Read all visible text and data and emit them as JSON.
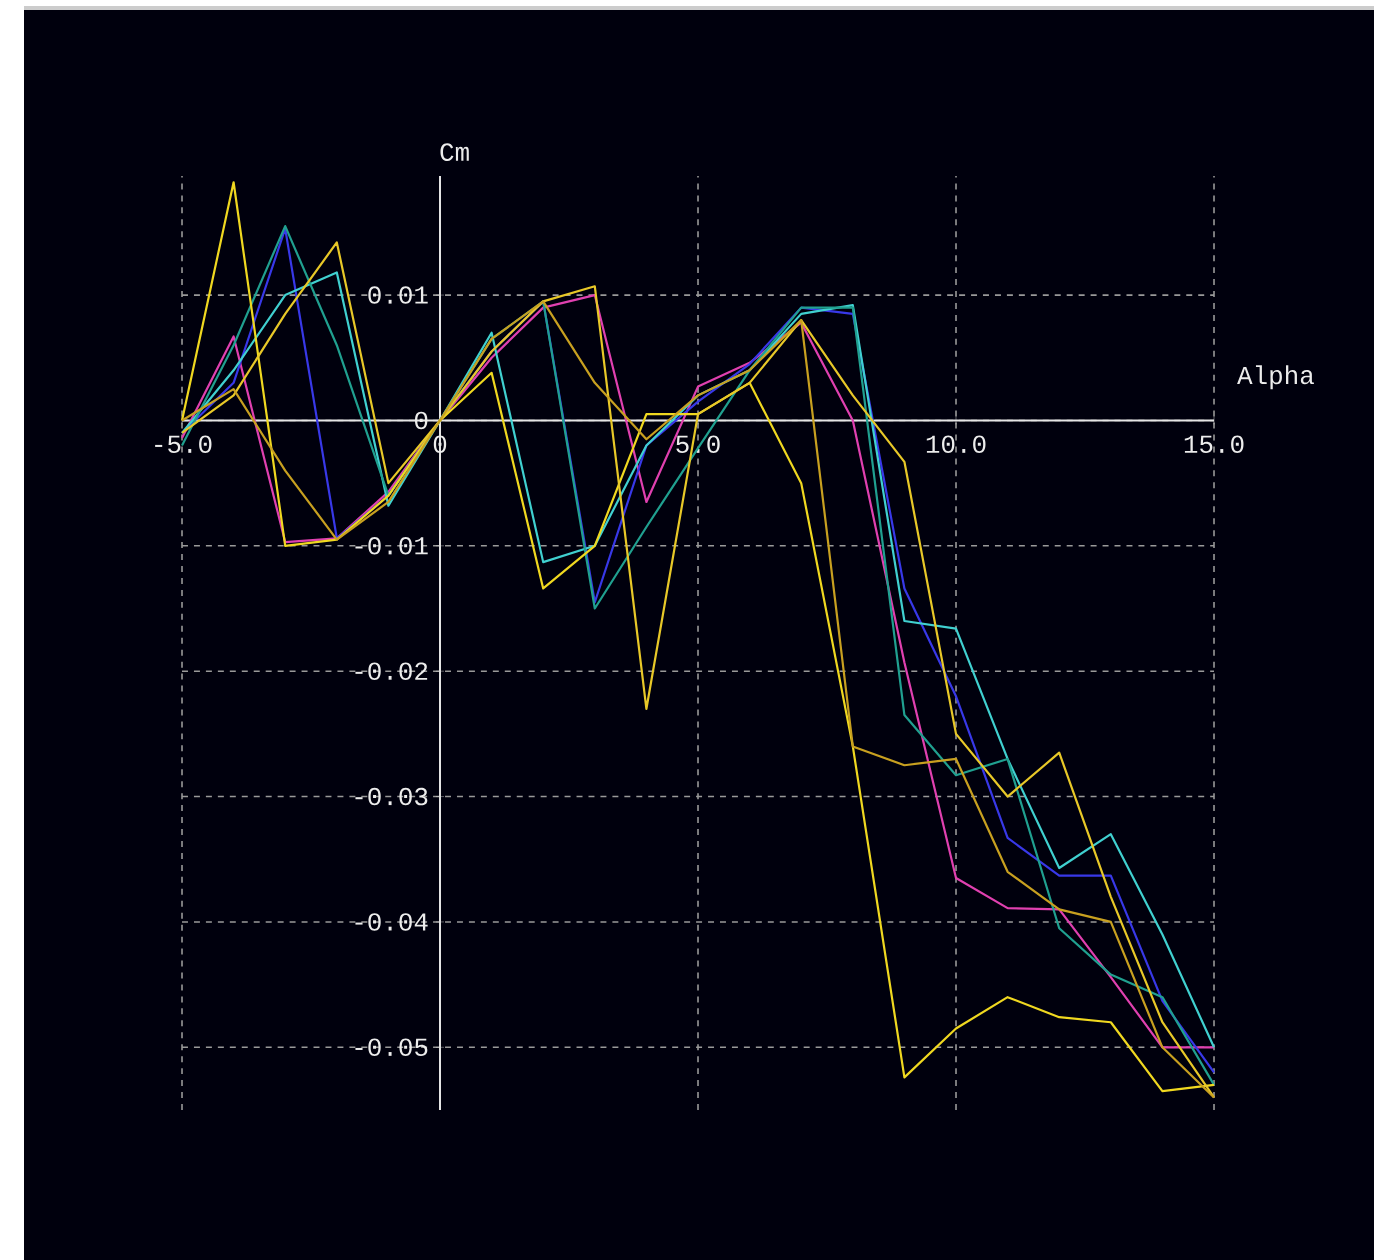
{
  "chart_data": {
    "type": "line",
    "xlabel": "Alpha",
    "ylabel": "Cm",
    "x": [
      -5,
      -4,
      -3,
      -2,
      -1,
      0,
      1,
      2,
      3,
      4,
      5,
      6,
      7,
      8,
      9,
      10,
      11,
      12,
      13,
      14,
      15
    ],
    "series": [
      {
        "color": "#e040b0",
        "values": [
          -0.0014,
          0.0067,
          -0.0097,
          -0.0094,
          -0.0057,
          0,
          0.005,
          0.009,
          0.01,
          -0.0065,
          0.0027,
          0.0046,
          0.0078,
          0,
          -0.0193,
          -0.0365,
          -0.0389,
          -0.039,
          -0.0444,
          -0.05,
          -0.05
        ]
      },
      {
        "color": "#3838e8",
        "values": [
          -0.001,
          0.003,
          0.0153,
          -0.0094,
          -0.006,
          0,
          0.0055,
          0.0095,
          -0.0145,
          -0.002,
          0.0015,
          0.0045,
          0.009,
          0.0085,
          -0.0134,
          -0.022,
          -0.0333,
          -0.0363,
          -0.0363,
          -0.0463,
          -0.052
        ]
      },
      {
        "color": "#40d0d0",
        "values": [
          -0.001,
          0.004,
          0.01,
          0.0118,
          -0.0068,
          0,
          0.007,
          -0.0113,
          -0.01,
          -0.002,
          0.002,
          0.004,
          0.0085,
          0.0092,
          -0.016,
          -0.0166,
          -0.027,
          -0.0357,
          -0.033,
          -0.041,
          -0.05
        ]
      },
      {
        "color": "#20a090",
        "values": [
          -0.002,
          0.006,
          0.0155,
          0.006,
          -0.006,
          0,
          0.0065,
          0.0095,
          -0.015,
          -0.0085,
          -0.0022,
          0.004,
          0.009,
          0.009,
          -0.0235,
          -0.0283,
          -0.027,
          -0.0405,
          -0.0442,
          -0.046,
          -0.053
        ]
      },
      {
        "color": "#f0d820",
        "values": [
          0,
          0.019,
          -0.01,
          -0.0095,
          -0.006,
          0,
          0.0038,
          -0.0134,
          -0.01,
          0.0005,
          0.0005,
          0.003,
          -0.005,
          -0.026,
          -0.0524,
          -0.0485,
          -0.046,
          -0.0476,
          -0.048,
          -0.0535,
          -0.053
        ]
      },
      {
        "color": "#e8c828",
        "values": [
          -0.001,
          0.002,
          0.0085,
          0.0142,
          -0.005,
          0,
          0.0055,
          0.0095,
          0.0107,
          -0.023,
          0.0005,
          0.003,
          0.008,
          0.002,
          -0.0033,
          -0.025,
          -0.03,
          -0.0265,
          -0.038,
          -0.048,
          -0.054
        ]
      },
      {
        "color": "#c8a020",
        "values": [
          0,
          0.0025,
          -0.004,
          -0.0095,
          -0.0065,
          0,
          0.0065,
          0.0095,
          0.003,
          -0.0015,
          0.002,
          0.004,
          0.008,
          -0.026,
          -0.0275,
          -0.027,
          -0.036,
          -0.039,
          -0.04,
          -0.05,
          -0.054
        ]
      }
    ],
    "xlim": [
      -5,
      15
    ],
    "ylim": [
      -0.055,
      0.0195
    ],
    "xticks": [
      {
        "value": -5,
        "label": "-5.0"
      },
      {
        "value": 0,
        "label": "0"
      },
      {
        "value": 5,
        "label": "5.0"
      },
      {
        "value": 10,
        "label": "10.0"
      },
      {
        "value": 15,
        "label": "15.0"
      }
    ],
    "yticks": [
      0.01,
      0,
      -0.01,
      -0.02,
      -0.03,
      -0.04,
      -0.05
    ],
    "grid": true,
    "marker": "none",
    "line_style": "solid"
  }
}
